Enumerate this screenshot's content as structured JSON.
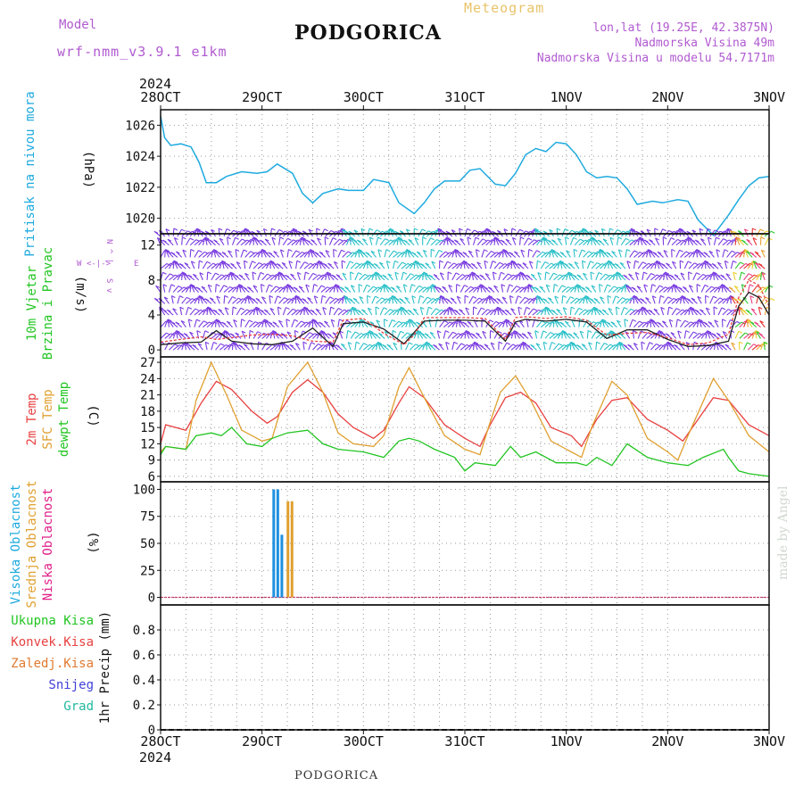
{
  "header": {
    "model_label": "Model",
    "model_name": "wrf-nmm_v3.9.1 e1km",
    "title": "PODGORICA",
    "meteogram_label": "Meteogram",
    "coords": "lon,lat (19.25E, 42.3875N)",
    "elevation": "Nadmorska Visina 49m",
    "model_elevation": "Nadmorska Visina u modelu 54.7171m",
    "year_label": "2024",
    "footer_title": "PODGORICA",
    "watermark": "made by Angel"
  },
  "colors": {
    "pressure": "#1eaadf",
    "temp2m": "#e84040",
    "sfc_temp": "#e0a030",
    "dewpoint": "#22c522",
    "high_cloud": "#1e90e0",
    "mid_cloud": "#e0a030",
    "low_cloud": "#e0208a",
    "wind_speed": "#222222",
    "wind_gust": "#e84040",
    "grid": "#888888"
  },
  "chart_data": [
    {
      "type": "line",
      "id": "pressure",
      "ylabel_parts": [
        {
          "text": "Pritisak na nivou mora",
          "color": "#1eaadf"
        }
      ],
      "units": "(hPa)",
      "ylim": [
        1019,
        1027
      ],
      "yticks": [
        1020,
        1022,
        1024,
        1026
      ],
      "x_days": [
        "28OCT",
        "29OCT",
        "30OCT",
        "31OCT",
        "1NOV",
        "2NOV",
        "3NOV"
      ],
      "series": [
        {
          "x": [
            0,
            0.04,
            0.1,
            0.2,
            0.3,
            0.38,
            0.45,
            0.55,
            0.65,
            0.8,
            0.95,
            1.05,
            1.15,
            1.3,
            1.4,
            1.5,
            1.6,
            1.75,
            1.85,
            2.0,
            2.1,
            2.25,
            2.35,
            2.5,
            2.6,
            2.7,
            2.8,
            2.95,
            3.05,
            3.15,
            3.3,
            3.4,
            3.5,
            3.6,
            3.7,
            3.8,
            3.9,
            4.0,
            4.1,
            4.2,
            4.3,
            4.4,
            4.5,
            4.6,
            4.7,
            4.85,
            4.95,
            5.1,
            5.2,
            5.3,
            5.45,
            5.6,
            5.7,
            5.8,
            5.9,
            6.0
          ],
          "y": [
            1026.6,
            1025.2,
            1024.7,
            1024.8,
            1024.6,
            1023.6,
            1022.3,
            1022.3,
            1022.7,
            1023.0,
            1022.9,
            1023.0,
            1023.5,
            1022.9,
            1021.6,
            1021.0,
            1021.6,
            1021.9,
            1021.8,
            1021.8,
            1022.5,
            1022.3,
            1021.0,
            1020.3,
            1021.0,
            1021.9,
            1022.4,
            1022.4,
            1023.1,
            1023.2,
            1022.2,
            1022.1,
            1022.9,
            1024.1,
            1024.5,
            1024.3,
            1024.9,
            1024.8,
            1024.1,
            1023.0,
            1022.6,
            1022.7,
            1022.6,
            1021.9,
            1020.9,
            1021.1,
            1021.0,
            1021.2,
            1021.1,
            1019.9,
            1018.9,
            1020.2,
            1021.2,
            1022.1,
            1022.6,
            1022.7
          ],
          "color": "#1eaadf"
        }
      ]
    },
    {
      "type": "line",
      "id": "wind",
      "ylabel_parts": [
        {
          "text": "10m Vjetar",
          "color": "#22c522"
        },
        {
          "text": "Brzina i Pravac",
          "color": "#22c522"
        }
      ],
      "units": "(m/s)",
      "compass": [
        "W",
        "<",
        "-",
        "|",
        "-",
        ">",
        "E",
        "N",
        "^",
        "S",
        "v"
      ],
      "ylim": [
        -0.8,
        13.3
      ],
      "yticks": [
        0,
        4,
        8,
        12
      ],
      "barb_levels": [
        0,
        1.3,
        2.6,
        4,
        5.3,
        6.6,
        8,
        9.3,
        10.6,
        12,
        13
      ],
      "barb_color_segments": [
        {
          "from": 0,
          "to": 1.8,
          "color": "#7a3ce0"
        },
        {
          "from": 1.8,
          "to": 2.75,
          "color": "#2bc0c8"
        },
        {
          "from": 2.75,
          "to": 3.7,
          "color": "#7a3ce0"
        },
        {
          "from": 3.7,
          "to": 4.6,
          "color": "#2bc0c8"
        },
        {
          "from": 4.6,
          "to": 5.65,
          "color": "#7a3ce0"
        },
        {
          "from": 5.65,
          "to": 6.0,
          "color": "#e84080"
        }
      ],
      "series": [
        {
          "name": "speed",
          "x": [
            0,
            0.2,
            0.4,
            0.55,
            0.7,
            0.9,
            1.1,
            1.3,
            1.5,
            1.7,
            1.8,
            2.0,
            2.2,
            2.4,
            2.5,
            2.6,
            2.8,
            3.0,
            3.2,
            3.4,
            3.5,
            3.6,
            3.8,
            4.0,
            4.2,
            4.4,
            4.6,
            4.8,
            5.0,
            5.2,
            5.4,
            5.6,
            5.7,
            5.8,
            5.9,
            6.0
          ],
          "y": [
            0.6,
            0.8,
            0.9,
            2.2,
            1.0,
            0.7,
            0.6,
            1.0,
            2.5,
            0.4,
            3.0,
            3.2,
            2.4,
            0.7,
            2.0,
            3.3,
            3.4,
            3.4,
            3.3,
            1.0,
            3.2,
            3.5,
            3.3,
            3.5,
            3.2,
            1.3,
            2.3,
            2.3,
            1.2,
            0.4,
            0.5,
            1.0,
            5.0,
            6.6,
            6.0,
            4.0
          ],
          "color": "#222222"
        },
        {
          "name": "gust",
          "x": [
            0,
            0.2,
            0.4,
            0.55,
            0.7,
            0.9,
            1.1,
            1.3,
            1.5,
            1.7,
            1.8,
            2.0,
            2.2,
            2.4,
            2.5,
            2.6,
            2.8,
            3.0,
            3.2,
            3.4,
            3.5,
            3.6,
            3.8,
            4.0,
            4.2,
            4.4,
            4.6,
            4.8,
            5.0,
            5.2,
            5.4,
            5.6,
            5.7,
            5.8,
            5.9,
            6.0
          ],
          "y": [
            0.9,
            1.2,
            1.5,
            1.2,
            1.4,
            1.7,
            1.8,
            1.6,
            1.0,
            0.9,
            3.4,
            3.6,
            1.9,
            0.6,
            1.7,
            3.7,
            3.7,
            3.7,
            3.6,
            1.2,
            3.7,
            3.8,
            3.6,
            3.8,
            3.4,
            1.7,
            1.9,
            2.0,
            1.4,
            0.6,
            0.8,
            1.8,
            6.0,
            8.0,
            7.4,
            5.0
          ],
          "color": "#e84040"
        }
      ]
    },
    {
      "type": "line",
      "id": "temperature",
      "ylabel_parts": [
        {
          "text": "2m Temp",
          "color": "#e84040"
        },
        {
          "text": "SFC Temp",
          "color": "#e0a030"
        },
        {
          "text": "dewpt Temp",
          "color": "#22c522"
        }
      ],
      "units": "(C)",
      "ylim": [
        5,
        28
      ],
      "yticks": [
        6,
        9,
        12,
        15,
        18,
        21,
        24,
        27
      ],
      "series": [
        {
          "name": "2m Temp",
          "x": [
            0,
            0.05,
            0.25,
            0.4,
            0.55,
            0.7,
            0.9,
            1.05,
            1.15,
            1.3,
            1.45,
            1.6,
            1.75,
            1.9,
            2.1,
            2.2,
            2.35,
            2.45,
            2.6,
            2.8,
            3.0,
            3.15,
            3.25,
            3.4,
            3.55,
            3.7,
            3.85,
            4.05,
            4.15,
            4.3,
            4.45,
            4.6,
            4.8,
            5.0,
            5.15,
            5.3,
            5.45,
            5.6,
            5.8,
            6.0
          ],
          "y": [
            12.0,
            15.5,
            14.5,
            19.5,
            23.5,
            22.0,
            18.0,
            15.8,
            17.0,
            21.5,
            23.8,
            21.5,
            17.5,
            15.0,
            13.0,
            14.5,
            19.5,
            22.5,
            20.5,
            15.5,
            13.0,
            11.5,
            15.5,
            20.5,
            21.5,
            19.5,
            15.0,
            13.5,
            11.5,
            16.5,
            20.0,
            20.5,
            16.5,
            14.5,
            12.5,
            16.5,
            20.5,
            20.0,
            15.5,
            13.5
          ],
          "color": "#e84040"
        },
        {
          "name": "SFC Temp",
          "x": [
            0,
            0.05,
            0.25,
            0.35,
            0.5,
            0.65,
            0.8,
            1.0,
            1.1,
            1.25,
            1.45,
            1.6,
            1.75,
            1.9,
            2.1,
            2.2,
            2.35,
            2.45,
            2.6,
            2.8,
            3.0,
            3.15,
            3.25,
            3.35,
            3.5,
            3.65,
            3.85,
            4.05,
            4.15,
            4.25,
            4.45,
            4.6,
            4.8,
            5.0,
            5.1,
            5.2,
            5.45,
            5.6,
            5.8,
            6.0
          ],
          "y": [
            10.5,
            11.5,
            11.0,
            20.0,
            27.0,
            21.0,
            14.5,
            12.5,
            13.0,
            22.5,
            27.0,
            21.5,
            14.0,
            12.0,
            11.5,
            13.5,
            22.5,
            26.0,
            20.5,
            13.5,
            11.0,
            10.0,
            16.0,
            21.5,
            24.5,
            20.0,
            12.5,
            10.5,
            9.5,
            15.0,
            23.5,
            21.0,
            13.0,
            10.5,
            9.0,
            13.5,
            24.0,
            20.0,
            13.5,
            10.5
          ],
          "color": "#e0a030"
        },
        {
          "name": "dewpt Temp",
          "x": [
            0,
            0.05,
            0.25,
            0.35,
            0.5,
            0.6,
            0.7,
            0.85,
            1.0,
            1.1,
            1.25,
            1.45,
            1.6,
            1.75,
            2.0,
            2.2,
            2.35,
            2.45,
            2.55,
            2.7,
            2.9,
            3.0,
            3.1,
            3.3,
            3.45,
            3.55,
            3.7,
            3.9,
            4.1,
            4.2,
            4.3,
            4.45,
            4.6,
            4.8,
            5.0,
            5.2,
            5.35,
            5.55,
            5.6,
            5.7,
            5.8,
            6.0
          ],
          "y": [
            10.0,
            11.5,
            11.0,
            13.5,
            14.0,
            13.5,
            15.0,
            12.0,
            11.5,
            13.0,
            14.0,
            14.5,
            12.0,
            11.0,
            10.5,
            9.5,
            12.5,
            13.0,
            12.5,
            11.0,
            9.5,
            7.0,
            8.5,
            8.0,
            11.5,
            9.5,
            10.5,
            8.5,
            8.5,
            8.0,
            9.5,
            8.0,
            12.0,
            9.5,
            8.5,
            8.0,
            9.5,
            11.0,
            9.5,
            7.0,
            6.5,
            6.0
          ],
          "color": "#22c522"
        }
      ]
    },
    {
      "type": "bar",
      "id": "cloud",
      "ylabel_parts": [
        {
          "text": "Visoka Oblacnost",
          "color": "#1eaadf"
        },
        {
          "text": "Srednja Oblacnost",
          "color": "#e0a030"
        },
        {
          "text": "Niska Oblacnost",
          "color": "#e0208a"
        }
      ],
      "units": "(%)",
      "ylim": [
        -7,
        107
      ],
      "yticks": [
        0,
        25,
        50,
        75,
        100
      ],
      "series": [
        {
          "name": "Visoka Oblacnost",
          "x": [
            1.12,
            1.16,
            1.2
          ],
          "values": [
            100,
            100,
            58
          ],
          "color": "#1e90e0"
        },
        {
          "name": "Srednja Oblacnost",
          "x": [
            1.26,
            1.3
          ],
          "values": [
            89,
            89
          ],
          "color": "#e0a030"
        },
        {
          "name": "Niska Oblacnost",
          "x": [],
          "values": [],
          "color": "#e0208a"
        }
      ]
    },
    {
      "type": "bar",
      "id": "precip",
      "legend": [
        {
          "text": "Ukupna Kisa",
          "color": "#22c522"
        },
        {
          "text": "Konvek.Kisa",
          "color": "#e84040"
        },
        {
          "text": "Zaledj.Kisa",
          "color": "#e07a30"
        },
        {
          "text": "Snijeg",
          "color": "#4040d8"
        },
        {
          "text": "Grad",
          "color": "#22b8a0"
        }
      ],
      "units": "1hr Precip (mm)",
      "ylim": [
        0,
        1.0
      ],
      "yticks": [
        0,
        0.2,
        0.4,
        0.6,
        0.8
      ],
      "series": []
    }
  ]
}
